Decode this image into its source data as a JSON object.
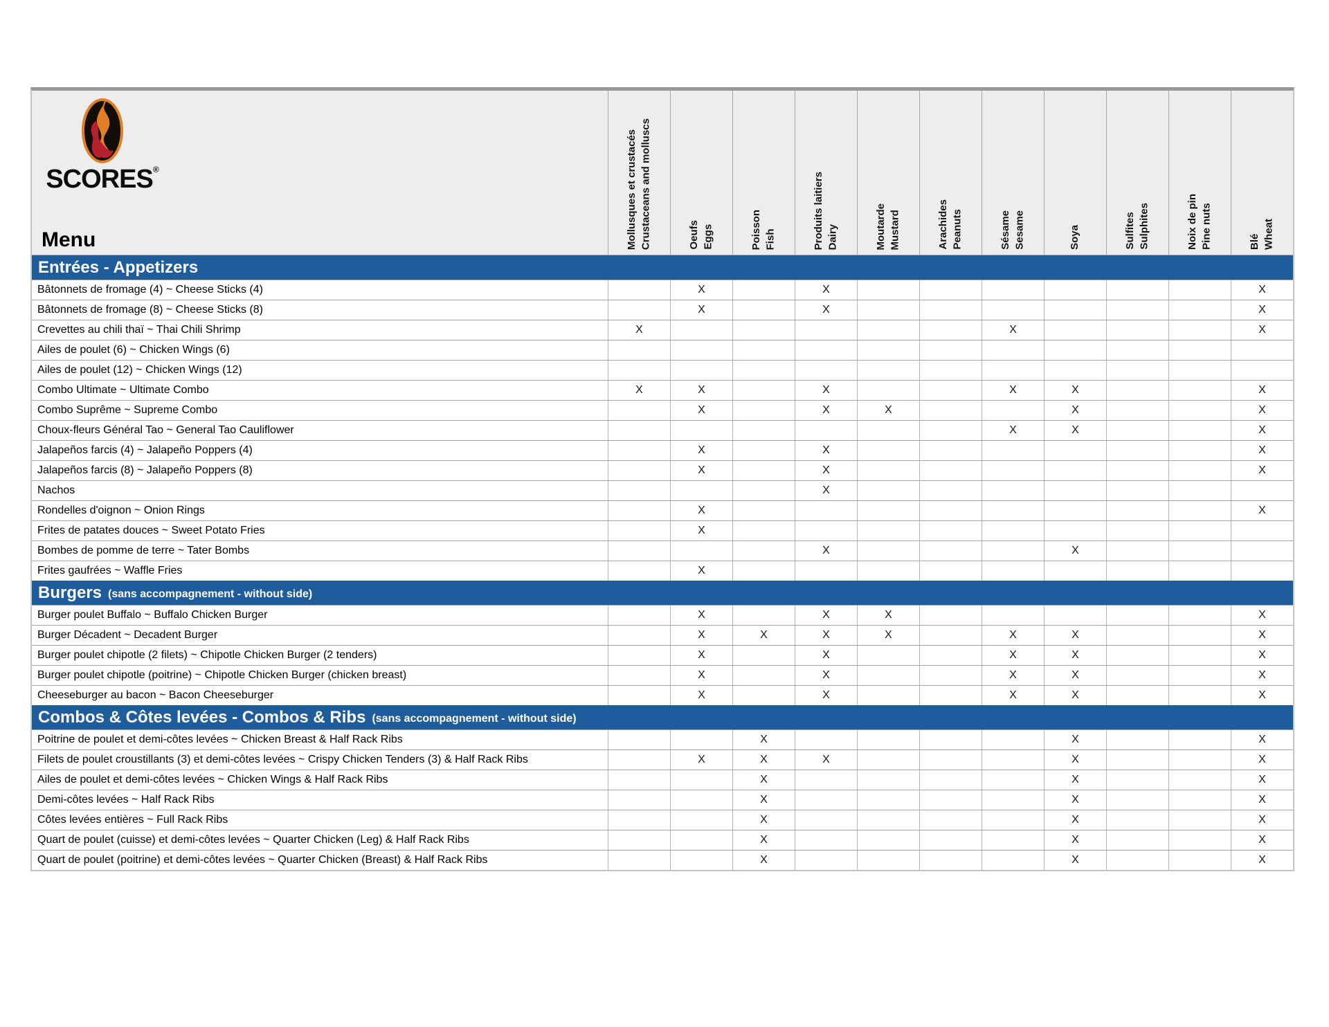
{
  "brand": {
    "logo_text": "SCORES",
    "registered_mark": "®",
    "menu_label": "Menu"
  },
  "mark": "X",
  "colors": {
    "section_bar_blue": "#1f5c9c",
    "header_band_gray": "#ededed",
    "logo_orange": "#df7f26",
    "logo_red": "#b5212e",
    "logo_black": "#140e08"
  },
  "columns": [
    {
      "id": "molluscs",
      "fr": "Mollusques et crustacés",
      "en": "Crustaceans and molluscs"
    },
    {
      "id": "eggs",
      "fr": "Oeufs",
      "en": "Eggs"
    },
    {
      "id": "fish",
      "fr": "Poisson",
      "en": "Fish"
    },
    {
      "id": "dairy",
      "fr": "Produits laitiers",
      "en": "Dairy"
    },
    {
      "id": "mustard",
      "fr": "Moutarde",
      "en": "Mustard"
    },
    {
      "id": "peanuts",
      "fr": "Arachides",
      "en": "Peanuts"
    },
    {
      "id": "sesame",
      "fr": "Sésame",
      "en": "Sesame"
    },
    {
      "id": "soy",
      "fr": "Soya",
      "en": ""
    },
    {
      "id": "sulphites",
      "fr": "Sulfites",
      "en": "Sulphites"
    },
    {
      "id": "pine_nuts",
      "fr": "Noix de pin",
      "en": "Pine nuts"
    },
    {
      "id": "wheat",
      "fr": "Blé",
      "en": "Wheat"
    }
  ],
  "sections": [
    {
      "title": "Entrées - Appetizers",
      "note": "",
      "items": [
        {
          "name": "Bâtonnets de fromage (4) ~ Cheese Sticks (4)",
          "allergens": [
            "eggs",
            "dairy",
            "wheat"
          ]
        },
        {
          "name": "Bâtonnets de fromage (8) ~ Cheese Sticks (8)",
          "allergens": [
            "eggs",
            "dairy",
            "wheat"
          ]
        },
        {
          "name": "Crevettes au chili thaï ~ Thai Chili Shrimp",
          "allergens": [
            "molluscs",
            "sesame",
            "wheat"
          ]
        },
        {
          "name": "Ailes de poulet (6) ~ Chicken Wings (6)",
          "allergens": []
        },
        {
          "name": "Ailes de poulet (12) ~ Chicken Wings (12)",
          "allergens": []
        },
        {
          "name": "Combo Ultimate ~ Ultimate Combo",
          "allergens": [
            "molluscs",
            "eggs",
            "dairy",
            "sesame",
            "soy",
            "wheat"
          ]
        },
        {
          "name": "Combo Suprême ~ Supreme Combo",
          "allergens": [
            "eggs",
            "dairy",
            "mustard",
            "soy",
            "wheat"
          ]
        },
        {
          "name": "Choux-fleurs Général Tao ~ General Tao Cauliflower",
          "allergens": [
            "sesame",
            "soy",
            "wheat"
          ]
        },
        {
          "name": "Jalapeños farcis (4) ~ Jalapeño Poppers (4)",
          "allergens": [
            "eggs",
            "dairy",
            "wheat"
          ]
        },
        {
          "name": "Jalapeños farcis (8) ~ Jalapeño Poppers (8)",
          "allergens": [
            "eggs",
            "dairy",
            "wheat"
          ]
        },
        {
          "name": "Nachos",
          "allergens": [
            "dairy"
          ]
        },
        {
          "name": "Rondelles d'oignon ~ Onion Rings",
          "allergens": [
            "eggs",
            "wheat"
          ]
        },
        {
          "name": "Frites de patates douces ~ Sweet Potato Fries",
          "allergens": [
            "eggs"
          ]
        },
        {
          "name": "Bombes de pomme de terre ~ Tater Bombs",
          "allergens": [
            "dairy",
            "soy"
          ]
        },
        {
          "name": "Frites gaufrées ~ Waffle Fries",
          "allergens": [
            "eggs"
          ]
        }
      ]
    },
    {
      "title": "Burgers",
      "note": "(sans accompagnement - without side)",
      "items": [
        {
          "name": "Burger poulet Buffalo ~ Buffalo Chicken Burger",
          "allergens": [
            "eggs",
            "dairy",
            "mustard",
            "wheat"
          ]
        },
        {
          "name": "Burger Décadent ~ Decadent Burger",
          "allergens": [
            "eggs",
            "fish",
            "dairy",
            "mustard",
            "sesame",
            "soy",
            "wheat"
          ]
        },
        {
          "name": "Burger poulet chipotle (2 filets) ~ Chipotle Chicken Burger (2 tenders)",
          "allergens": [
            "eggs",
            "dairy",
            "sesame",
            "soy",
            "wheat"
          ]
        },
        {
          "name": "Burger poulet chipotle (poitrine) ~ Chipotle Chicken Burger (chicken breast)",
          "allergens": [
            "eggs",
            "dairy",
            "sesame",
            "soy",
            "wheat"
          ]
        },
        {
          "name": "Cheeseburger au bacon ~ Bacon Cheeseburger",
          "allergens": [
            "eggs",
            "dairy",
            "sesame",
            "soy",
            "wheat"
          ]
        }
      ]
    },
    {
      "title": "Combos & Côtes levées - Combos & Ribs",
      "note": "(sans accompagnement - without side)",
      "items": [
        {
          "name": "Poitrine de poulet et demi-côtes levées ~ Chicken Breast & Half Rack Ribs",
          "allergens": [
            "fish",
            "soy",
            "wheat"
          ]
        },
        {
          "name": "Filets de poulet croustillants (3) et demi-côtes levées ~ Crispy Chicken Tenders (3) & Half Rack Ribs",
          "allergens": [
            "eggs",
            "fish",
            "dairy",
            "soy",
            "wheat"
          ]
        },
        {
          "name": "Ailes de poulet et demi-côtes levées ~ Chicken Wings & Half Rack Ribs",
          "allergens": [
            "fish",
            "soy",
            "wheat"
          ]
        },
        {
          "name": "Demi-côtes levées ~ Half Rack Ribs",
          "allergens": [
            "fish",
            "soy",
            "wheat"
          ]
        },
        {
          "name": "Côtes levées entières ~ Full Rack Ribs",
          "allergens": [
            "fish",
            "soy",
            "wheat"
          ]
        },
        {
          "name": "Quart de poulet (cuisse) et demi-côtes levées ~ Quarter Chicken (Leg) & Half Rack  Ribs",
          "allergens": [
            "fish",
            "soy",
            "wheat"
          ]
        },
        {
          "name": "Quart de poulet (poitrine) et demi-côtes levées ~ Quarter Chicken (Breast) & Half Rack Ribs",
          "allergens": [
            "fish",
            "soy",
            "wheat"
          ]
        }
      ]
    }
  ]
}
